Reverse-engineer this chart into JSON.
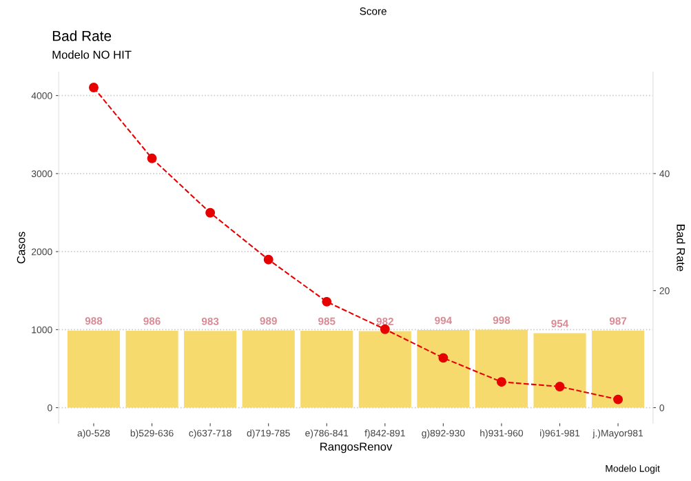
{
  "chart_data": {
    "type": "bar",
    "title": "Bad Rate",
    "subtitle": "Modelo NO HIT",
    "xlabel": "RangosRenov",
    "ylabel": "Casos",
    "y2label": "Bad Rate",
    "annotations": [
      "Score",
      "Modelo Logit"
    ],
    "categories": [
      "a)0-528",
      "b)529-636",
      "c)637-718",
      "d)719-785",
      "e)786-841",
      "f)842-891",
      "g)892-930",
      "h)931-960",
      "i)961-981",
      "j.)Mayor981"
    ],
    "series": [
      {
        "color": "#f6da6d",
        "data_labels": true,
        "values": [
          988,
          986,
          983,
          989,
          985,
          982,
          994,
          998,
          954,
          987
        ]
      },
      {
        "type": "line",
        "axis": "y2",
        "color": "#e60000",
        "marker": "circle",
        "line_style": "dashed",
        "values": [
          54.7,
          42.6,
          33.3,
          25.3,
          18.1,
          13.4,
          8.5,
          4.4,
          3.6,
          1.4
        ]
      }
    ],
    "ylim": [
      -200,
      4300
    ],
    "yticks": [
      0,
      1000,
      2000,
      3000,
      4000
    ],
    "y2lim": [
      -2.67,
      57.33
    ],
    "y2ticks": [
      0,
      20,
      40
    ],
    "grid": "y",
    "legend": false
  }
}
